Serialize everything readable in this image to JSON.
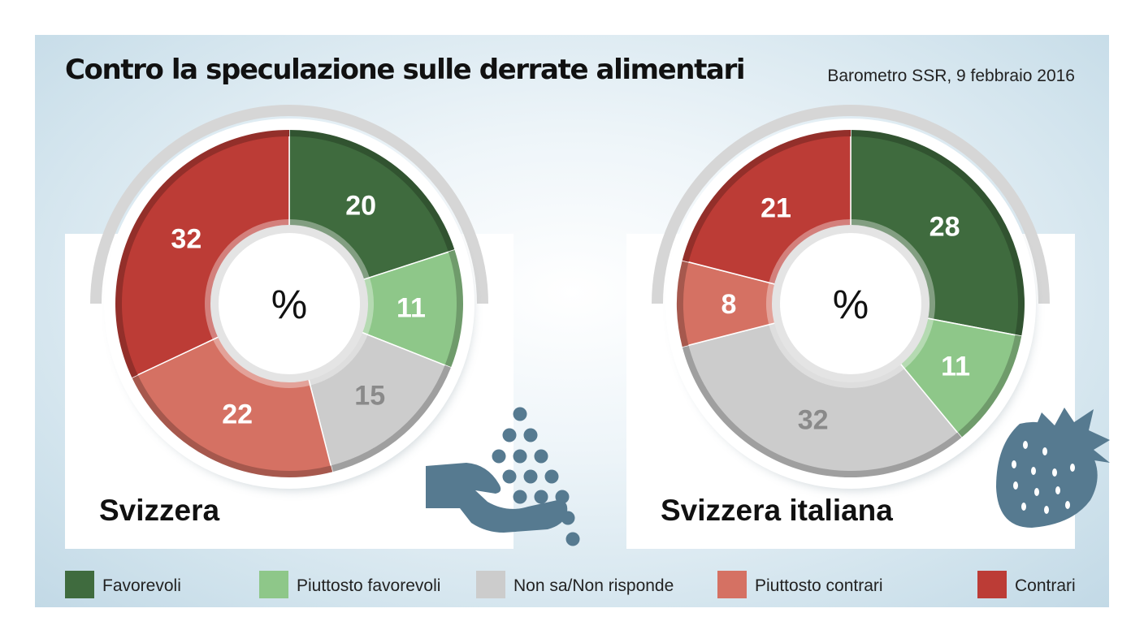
{
  "title": "Contro la speculazione sulle derrate alimentari",
  "source": "Barometro SSR, 9 febbraio 2016",
  "unit_label": "%",
  "colors": {
    "favorevoli": "#3f6b3e",
    "piuttosto_favorevoli": "#8ec789",
    "non_sa": "#cccccc",
    "piuttosto_contrari": "#d57163",
    "contrari": "#bc3c36"
  },
  "legend": [
    {
      "label": "Favorevoli",
      "color": "#3f6b3e"
    },
    {
      "label": "Piuttosto favorevoli",
      "color": "#8ec789"
    },
    {
      "label": "Non sa/Non risponde",
      "color": "#cccccc"
    },
    {
      "label": "Piuttosto contrari",
      "color": "#d57163"
    },
    {
      "label": "Contrari",
      "color": "#bc3c36"
    }
  ],
  "icons": [
    "hand-seeds-icon",
    "strawberry-icon"
  ],
  "chart_data": [
    {
      "type": "pie",
      "title": "Svizzera",
      "unit": "%",
      "categories": [
        "Favorevoli",
        "Piuttosto favorevoli",
        "Non sa/Non risponde",
        "Piuttosto contrari",
        "Contrari"
      ],
      "values": [
        20,
        11,
        15,
        22,
        32
      ]
    },
    {
      "type": "pie",
      "title": "Svizzera italiana",
      "unit": "%",
      "categories": [
        "Favorevoli",
        "Piuttosto favorevoli",
        "Non sa/Non risponde",
        "Piuttosto contrari",
        "Contrari"
      ],
      "values": [
        28,
        11,
        32,
        8,
        21
      ]
    }
  ]
}
